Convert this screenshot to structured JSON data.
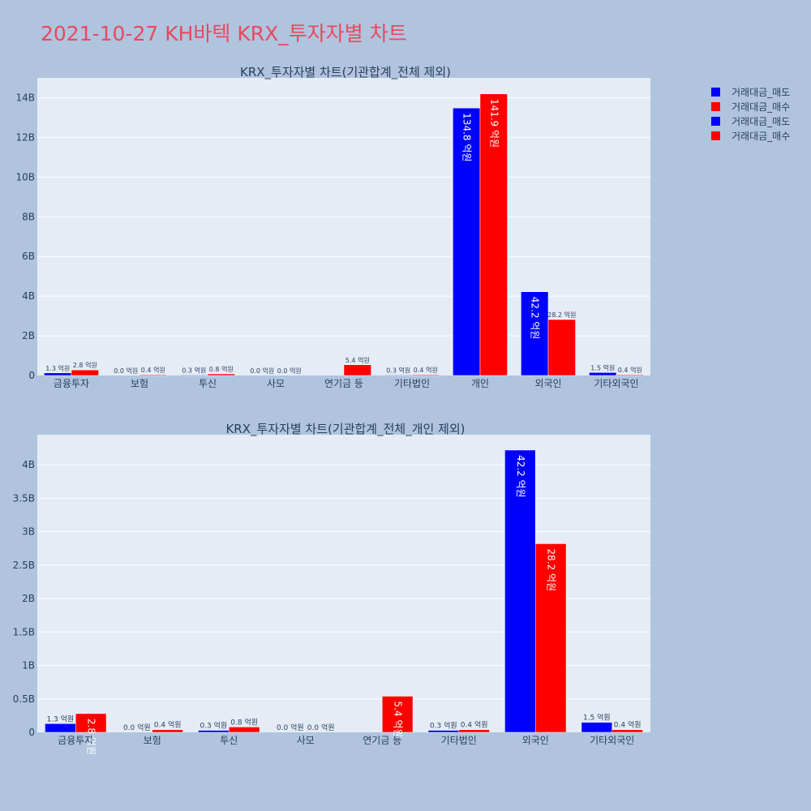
{
  "page_title": "2021-10-27 KH바텍 KRX_투자자별 차트",
  "colors": {
    "sell": "#0000ff",
    "buy": "#ff0000",
    "plot_bg": "#e5ecf6",
    "page_bg": "#b0c4de"
  },
  "legend": [
    "거래대금_매도",
    "거래대금_매수",
    "거래대금_매도",
    "거래대금_매수"
  ],
  "chart_data": [
    {
      "type": "bar",
      "title": "KRX_투자자별 차트(기관합계_전체 제외)",
      "categories": [
        "금융투자",
        "보험",
        "투신",
        "사모",
        "연기금 등",
        "기타법인",
        "개인",
        "외국인",
        "기타외국인"
      ],
      "series": [
        {
          "name": "거래대금_매도",
          "values": [
            0.13,
            0.0,
            0.03,
            0.0,
            null,
            0.03,
            13.48,
            4.22,
            0.15
          ],
          "labels": [
            "1.3 억원",
            "0.0 억원",
            "0.3 억원",
            "0.0 억원",
            "",
            "0.3 억원",
            "134.8 억원",
            "42.2 억원",
            "1.5 억원"
          ]
        },
        {
          "name": "거래대금_매수",
          "values": [
            0.28,
            0.04,
            0.08,
            0.0,
            0.54,
            0.04,
            14.19,
            2.82,
            0.04
          ],
          "labels": [
            "2.8 억원",
            "0.4 억원",
            "0.8 억원",
            "0.0 억원",
            "5.4 억원",
            "0.4 억원",
            "141.9 억원",
            "28.2 억원",
            "0.4 억원"
          ]
        }
      ],
      "ylim": [
        0,
        15
      ],
      "yticks": [
        0,
        2,
        4,
        6,
        8,
        10,
        12,
        14
      ],
      "ytick_labels": [
        "0",
        "2B",
        "4B",
        "6B",
        "8B",
        "10B",
        "12B",
        "14B"
      ],
      "grid": true
    },
    {
      "type": "bar",
      "title": "KRX_투자자별 차트(기관합계_전체_개인 제외)",
      "categories": [
        "금융투자",
        "보험",
        "투신",
        "사모",
        "연기금 등",
        "기타법인",
        "외국인",
        "기타외국인"
      ],
      "series": [
        {
          "name": "거래대금_매도",
          "values": [
            0.13,
            0.0,
            0.03,
            0.0,
            null,
            0.03,
            4.22,
            0.15
          ],
          "labels": [
            "1.3 억원",
            "0.0 억원",
            "0.3 억원",
            "0.0 억원",
            "",
            "0.3 억원",
            "42.2 억원",
            "1.5 억원"
          ]
        },
        {
          "name": "거래대금_매수",
          "values": [
            0.28,
            0.04,
            0.08,
            0.0,
            0.54,
            0.04,
            2.82,
            0.04
          ],
          "labels": [
            "2.8 억원",
            "0.4 억원",
            "0.8 억원",
            "0.0 억원",
            "5.4 억원",
            "0.4 억원",
            "28.2 억원",
            "0.4 억원"
          ]
        }
      ],
      "ylim": [
        0,
        4.45
      ],
      "yticks": [
        0,
        0.5,
        1,
        1.5,
        2,
        2.5,
        3,
        3.5,
        4
      ],
      "ytick_labels": [
        "0",
        "0.5B",
        "1B",
        "1.5B",
        "2B",
        "2.5B",
        "3B",
        "3.5B",
        "4B"
      ],
      "grid": true
    }
  ]
}
